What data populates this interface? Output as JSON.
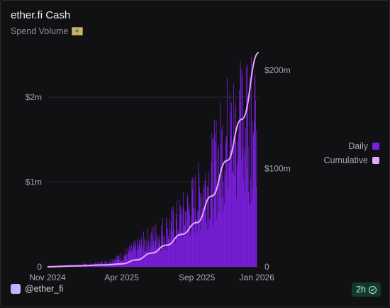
{
  "header": {
    "title": "ether.fi Cash",
    "subtitle": "Spend Volume",
    "subtitle_icon": "money-icon"
  },
  "footer": {
    "handle": "@ether_fi",
    "badge": "2h",
    "badge_icon": "check-circle-icon"
  },
  "chart_data": {
    "type": "bar",
    "title": "",
    "x_start": "2024-11-01",
    "x_end": "2026-01-05",
    "x_ticks": [
      "Nov 2024",
      "Apr 2025",
      "Sep 2025",
      "Jan 2026"
    ],
    "x_tick_dates": [
      "2024-11-01",
      "2025-04-01",
      "2025-09-01",
      "2026-01-01"
    ],
    "y_left": {
      "label": "Daily",
      "ylim": [
        0,
        2000000
      ],
      "ticks": [
        0,
        1000000,
        2000000
      ],
      "tick_labels": [
        "0",
        "$1m",
        "$2m"
      ]
    },
    "y_right": {
      "label": "Cumulative",
      "ylim": [
        0,
        200000000
      ],
      "ticks": [
        0,
        100000000,
        200000000
      ],
      "tick_labels": [
        "0",
        "$100m",
        "$200m"
      ]
    },
    "grid": true,
    "legend_position": "right",
    "series": [
      {
        "name": "Daily",
        "axis": "left",
        "color": "#7B1FE0",
        "values_by_month": [
          [
            "2024-11",
            8000
          ],
          [
            "2024-12",
            15000
          ],
          [
            "2025-01",
            22000
          ],
          [
            "2025-02",
            30000
          ],
          [
            "2025-03",
            55000
          ],
          [
            "2025-04",
            120000
          ],
          [
            "2025-05",
            220000
          ],
          [
            "2025-06",
            330000
          ],
          [
            "2025-07",
            420000
          ],
          [
            "2025-08",
            560000
          ],
          [
            "2025-09",
            780000
          ],
          [
            "2025-10",
            1050000
          ],
          [
            "2025-11",
            1500000
          ],
          [
            "2025-12",
            1600000
          ]
        ],
        "peak": 2500000
      },
      {
        "name": "Cumulative",
        "axis": "right",
        "color": "#E6A8FF",
        "points": [
          [
            "2024-11-01",
            0
          ],
          [
            "2025-01-01",
            1000000
          ],
          [
            "2025-03-01",
            2000000
          ],
          [
            "2025-04-01",
            3000000
          ],
          [
            "2025-05-01",
            7000000
          ],
          [
            "2025-06-01",
            14000000
          ],
          [
            "2025-07-01",
            22000000
          ],
          [
            "2025-08-01",
            33000000
          ],
          [
            "2025-09-01",
            45000000
          ],
          [
            "2025-10-01",
            72000000
          ],
          [
            "2025-11-01",
            108000000
          ],
          [
            "2025-12-01",
            150000000
          ],
          [
            "2026-01-05",
            218000000
          ]
        ]
      }
    ]
  }
}
